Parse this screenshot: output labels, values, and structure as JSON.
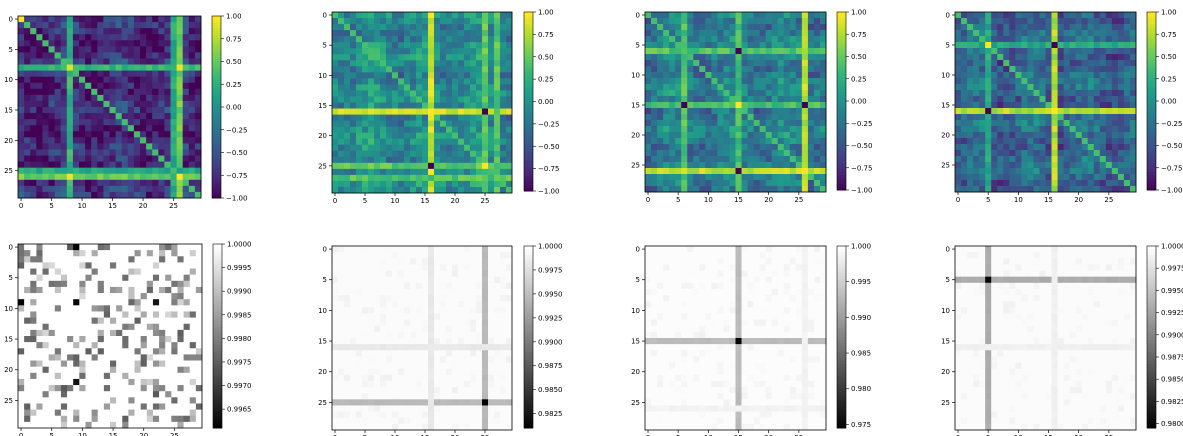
{
  "chart_data": [
    {
      "type": "heatmap",
      "row": "top",
      "cmap": "viridis",
      "size": 30,
      "xticks": [
        0,
        5,
        10,
        15,
        20,
        25
      ],
      "yticks": [
        0,
        5,
        10,
        15,
        20,
        25
      ],
      "colorbar": {
        "min": -1.0,
        "max": 1.0,
        "ticks": [
          "1.00",
          "0.75",
          "0.50",
          "0.25",
          "0.00",
          "−0.25",
          "−0.50",
          "−0.75",
          "−1.00"
        ]
      },
      "base": -0.75,
      "bands": [
        {
          "index": 8,
          "value": 0.3
        },
        {
          "index": 26,
          "value": 0.55
        },
        {
          "index": 25,
          "value": 0.2
        }
      ],
      "spikes": [
        {
          "row": 8,
          "col": 8,
          "value": 0.9
        },
        {
          "row": 26,
          "col": 26,
          "value": 1.0
        },
        {
          "row": 0,
          "col": 0,
          "value": 1.0
        },
        {
          "row": 26,
          "col": 8,
          "value": 0.95
        }
      ]
    },
    {
      "type": "heatmap",
      "row": "top",
      "cmap": "viridis",
      "size": 30,
      "xticks": [
        0,
        5,
        10,
        15,
        20,
        25
      ],
      "yticks": [
        0,
        5,
        10,
        15,
        20,
        25
      ],
      "colorbar": {
        "min": -1.0,
        "max": 1.0,
        "ticks": [
          "1.00",
          "0.75",
          "0.50",
          "0.25",
          "0.00",
          "−0.25",
          "−0.50",
          "−0.75",
          "−1.00"
        ]
      },
      "base": -0.05,
      "bands": [
        {
          "index": 16,
          "value": 0.85
        },
        {
          "index": 25,
          "value": 0.5
        },
        {
          "index": 27,
          "value": 0.45
        }
      ],
      "spikes": [
        {
          "row": 16,
          "col": 16,
          "value": 1.0
        },
        {
          "row": 25,
          "col": 25,
          "value": 1.0
        },
        {
          "row": 25,
          "col": 16,
          "value": -1.0
        }
      ]
    },
    {
      "type": "heatmap",
      "row": "top",
      "cmap": "viridis",
      "size": 30,
      "xticks": [
        0,
        5,
        10,
        15,
        20,
        25
      ],
      "yticks": [
        0,
        5,
        10,
        15,
        20,
        25
      ],
      "colorbar": {
        "min": -1.0,
        "max": 1.0,
        "ticks": [
          "1.00",
          "0.75",
          "0.50",
          "0.25",
          "0.00",
          "−0.25",
          "−0.50",
          "−0.75",
          "−1.00"
        ]
      },
      "base": -0.15,
      "bands": [
        {
          "index": 6,
          "value": 0.45
        },
        {
          "index": 15,
          "value": 0.4
        },
        {
          "index": 26,
          "value": 0.8
        }
      ],
      "spikes": [
        {
          "row": 15,
          "col": 15,
          "value": 1.0
        },
        {
          "row": 26,
          "col": 26,
          "value": 1.0
        },
        {
          "row": 26,
          "col": 15,
          "value": -1.0
        },
        {
          "row": 15,
          "col": 6,
          "value": -1.0
        }
      ]
    },
    {
      "type": "heatmap",
      "row": "top",
      "cmap": "viridis",
      "size": 30,
      "xticks": [
        0,
        5,
        10,
        15,
        20,
        25
      ],
      "yticks": [
        0,
        5,
        10,
        15,
        20,
        25
      ],
      "colorbar": {
        "min": -1.0,
        "max": 1.0,
        "ticks": [
          "1.00",
          "0.75",
          "0.50",
          "0.25",
          "0.00",
          "−0.25",
          "−0.50",
          "−0.75",
          "−1.00"
        ]
      },
      "base": -0.35,
      "bands": [
        {
          "index": 16,
          "value": 0.75
        },
        {
          "index": 5,
          "value": 0.2
        }
      ],
      "spikes": [
        {
          "row": 5,
          "col": 5,
          "value": 1.0
        },
        {
          "row": 16,
          "col": 16,
          "value": 1.0
        },
        {
          "row": 5,
          "col": 16,
          "value": -1.0
        },
        {
          "row": 16,
          "col": 5,
          "value": -1.0
        }
      ]
    },
    {
      "type": "heatmap",
      "row": "bottom",
      "cmap": "gray",
      "size": 30,
      "xticks": [
        0,
        5,
        10,
        15,
        20,
        25
      ],
      "yticks": [
        0,
        5,
        10,
        15,
        20,
        25
      ],
      "colorbar": {
        "min": 0.9961,
        "max": 1.0,
        "ticks": [
          "1.0000",
          "0.9995",
          "0.9990",
          "0.9985",
          "0.9980",
          "0.9975",
          "0.9970",
          "0.9965"
        ],
        "tick_values": [
          1.0,
          0.9995,
          0.999,
          0.9985,
          0.998,
          0.9975,
          0.997,
          0.9965
        ]
      },
      "base": 0.99995,
      "scatter": true,
      "bands": [],
      "spikes": [
        {
          "row": 0,
          "col": 9,
          "value": 0.9961
        },
        {
          "row": 9,
          "col": 9,
          "value": 0.9962
        },
        {
          "row": 9,
          "col": 22,
          "value": 0.9964
        }
      ]
    },
    {
      "type": "heatmap",
      "row": "bottom",
      "cmap": "gray",
      "size": 30,
      "xticks": [
        0,
        5,
        10,
        15,
        20,
        25
      ],
      "yticks": [
        0,
        5,
        10,
        15,
        20,
        25
      ],
      "colorbar": {
        "min": 0.981,
        "max": 1.0,
        "ticks": [
          "1.0000",
          "0.9975",
          "0.9950",
          "0.9925",
          "0.9900",
          "0.9875",
          "0.9850",
          "0.9825"
        ],
        "tick_values": [
          1.0,
          0.9975,
          0.995,
          0.9925,
          0.99,
          0.9875,
          0.985,
          0.9825
        ]
      },
      "base": 0.9997,
      "bands": [
        {
          "index": 25,
          "value": 0.995
        },
        {
          "index": 16,
          "value": 0.9985
        }
      ],
      "spikes": [
        {
          "row": 25,
          "col": 25,
          "value": 0.981
        }
      ]
    },
    {
      "type": "heatmap",
      "row": "bottom",
      "cmap": "gray",
      "size": 30,
      "xticks": [
        0,
        5,
        10,
        15,
        20,
        25
      ],
      "yticks": [
        0,
        5,
        10,
        15,
        20,
        25
      ],
      "colorbar": {
        "min": 0.9745,
        "max": 1.0,
        "ticks": [
          "1.000",
          "0.995",
          "0.990",
          "0.985",
          "0.980",
          "0.975"
        ],
        "tick_values": [
          1.0,
          0.995,
          0.99,
          0.985,
          0.98,
          0.975
        ]
      },
      "base": 0.9997,
      "bands": [
        {
          "index": 15,
          "value": 0.9935
        },
        {
          "index": 26,
          "value": 0.999
        }
      ],
      "spikes": [
        {
          "row": 15,
          "col": 15,
          "value": 0.9745
        }
      ]
    },
    {
      "type": "heatmap",
      "row": "bottom",
      "cmap": "gray",
      "size": 30,
      "xticks": [
        0,
        5,
        10,
        15,
        20,
        25
      ],
      "yticks": [
        0,
        5,
        10,
        15,
        20,
        25
      ],
      "colorbar": {
        "min": 0.9795,
        "max": 1.0,
        "ticks": [
          "1.0000",
          "0.9975",
          "0.9950",
          "0.9925",
          "0.9900",
          "0.9875",
          "0.9850",
          "0.9825",
          "0.9800"
        ],
        "tick_values": [
          1.0,
          0.9975,
          0.995,
          0.9925,
          0.99,
          0.9875,
          0.985,
          0.9825,
          0.98
        ]
      },
      "base": 0.9997,
      "bands": [
        {
          "index": 5,
          "value": 0.9935
        },
        {
          "index": 16,
          "value": 0.999
        }
      ],
      "spikes": [
        {
          "row": 5,
          "col": 5,
          "value": 0.9795
        }
      ]
    }
  ]
}
